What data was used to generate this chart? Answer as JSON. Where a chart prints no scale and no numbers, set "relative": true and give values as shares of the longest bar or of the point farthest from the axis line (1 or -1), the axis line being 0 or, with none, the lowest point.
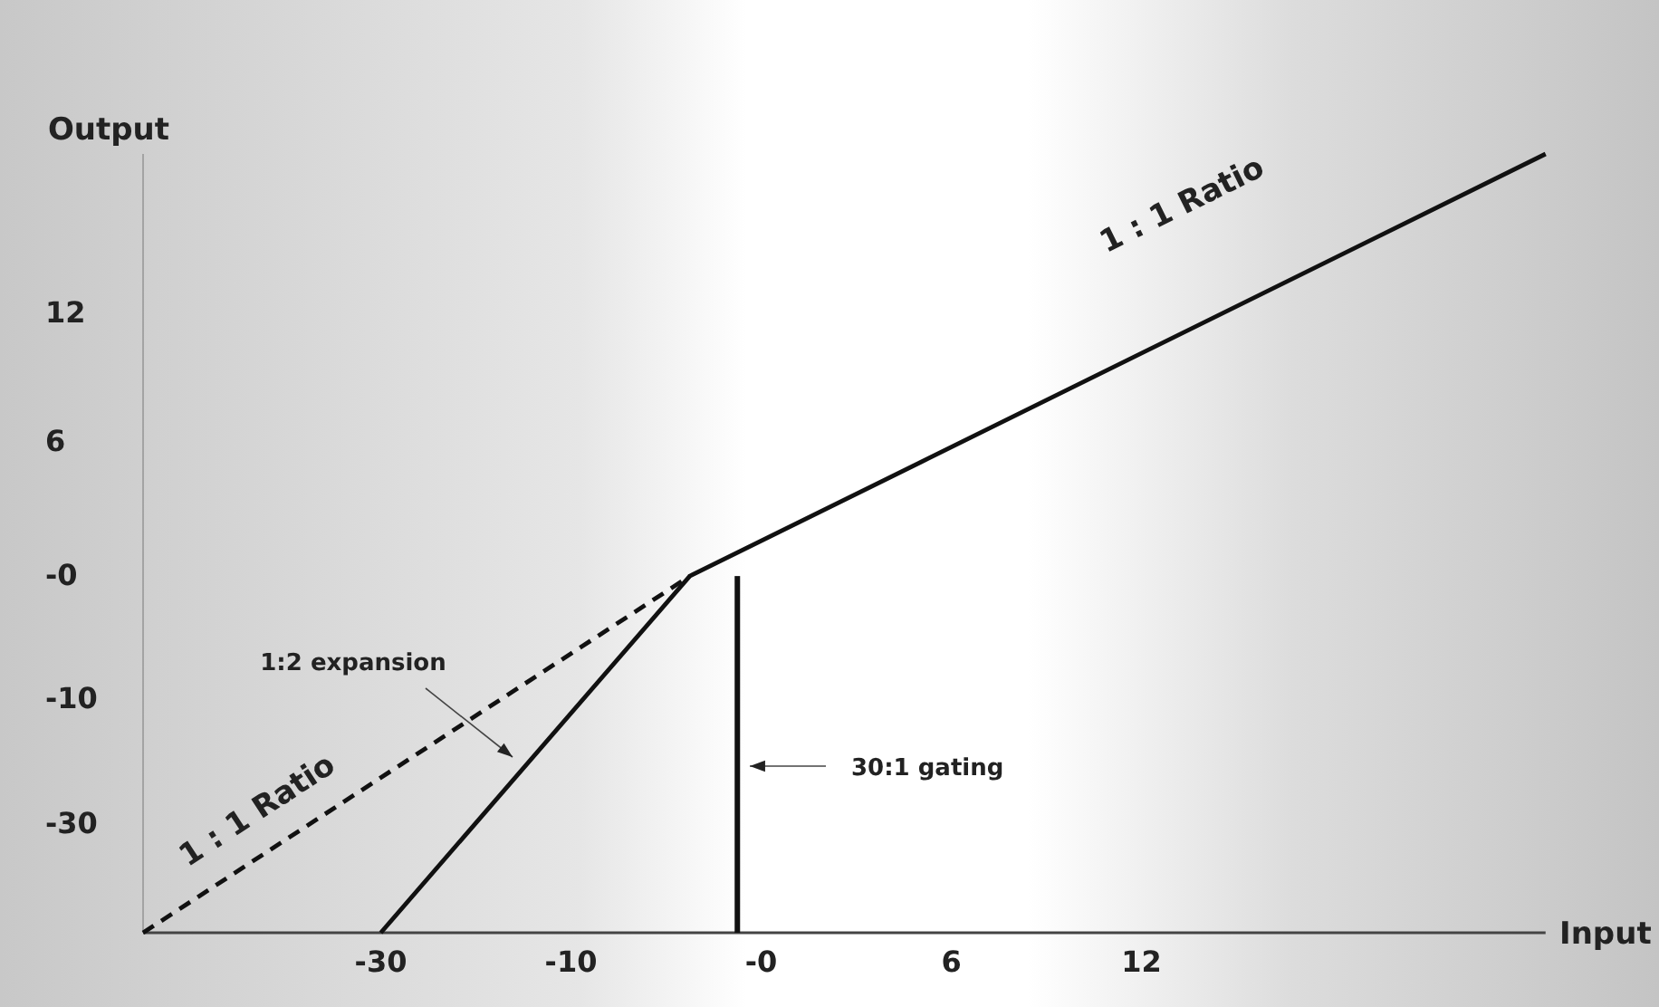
{
  "chart_data": {
    "type": "line",
    "xlabel": "Input",
    "ylabel": "Output",
    "relative": true,
    "categories": [
      null,
      null,
      null,
      null,
      null,
      null,
      null,
      null,
      null,
      null,
      "-30",
      null,
      null,
      null,
      null,
      null,
      null,
      null,
      "-10",
      null,
      null,
      null,
      null,
      null,
      null,
      null,
      "-0",
      null,
      null,
      null,
      null,
      null,
      null,
      null,
      "6",
      null,
      null,
      null,
      null,
      null,
      null,
      null,
      "12",
      null,
      null,
      null,
      null,
      null,
      null,
      null,
      null,
      null,
      null,
      null,
      null,
      null,
      null,
      null,
      null,
      null
    ],
    "series": [
      {
        "color": "#111111",
        "line_style": "solid",
        "values": [
          null,
          null,
          null,
          null,
          null,
          null,
          null,
          null,
          null,
          null,
          0,
          null,
          null,
          null,
          null,
          null,
          null,
          null,
          null,
          null,
          null,
          null,
          null,
          0.458,
          null,
          null,
          null,
          null,
          null,
          null,
          null,
          null,
          null,
          null,
          null,
          null,
          null,
          null,
          null,
          null,
          null,
          null,
          null,
          null,
          null,
          null,
          null,
          null,
          null,
          null,
          null,
          null,
          null,
          null,
          null,
          null,
          null,
          null,
          null,
          1
        ]
      },
      {
        "color": "#111111",
        "line_style": "dashed",
        "values": [
          0,
          null,
          null,
          null,
          null,
          null,
          null,
          null,
          null,
          null,
          null,
          null,
          null,
          null,
          null,
          null,
          null,
          null,
          null,
          null,
          null,
          null,
          null,
          0.458,
          null,
          null,
          null,
          null,
          null,
          null,
          null,
          null,
          null,
          null,
          null,
          null,
          null,
          null,
          null,
          null,
          null,
          null,
          null,
          null,
          null,
          null,
          null,
          null,
          null,
          null,
          null,
          null,
          null,
          null,
          null,
          null,
          null,
          null,
          null,
          null
        ]
      },
      {
        "type": "bar",
        "color": "#111111",
        "values": [
          null,
          null,
          null,
          null,
          null,
          null,
          null,
          null,
          null,
          null,
          null,
          null,
          null,
          null,
          null,
          null,
          null,
          null,
          null,
          null,
          null,
          null,
          null,
          null,
          null,
          0.458,
          null,
          null,
          null,
          null,
          null,
          null,
          null,
          null,
          null,
          null,
          null,
          null,
          null,
          null,
          null,
          null,
          null,
          null,
          null,
          null,
          null,
          null,
          null,
          null,
          null,
          null,
          null,
          null,
          null,
          null,
          null,
          null,
          null,
          null
        ]
      }
    ],
    "annotations": [
      "12",
      "6",
      "-0",
      "-10",
      "-30",
      "1 : 1 Ratio",
      "1 : 1 Ratio",
      "1:2 expansion",
      "30:1 gating"
    ],
    "marker": "none"
  }
}
